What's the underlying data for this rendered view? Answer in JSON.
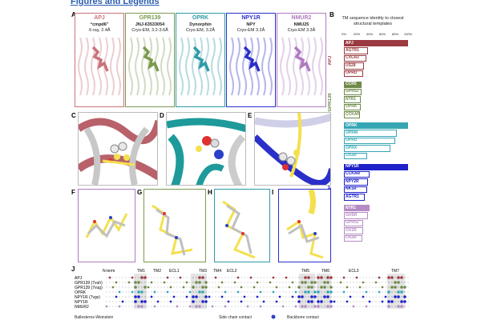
{
  "page_title": "Figures and Legends",
  "panel_labels": [
    "A",
    "B",
    "C",
    "D",
    "E",
    "F",
    "G",
    "H",
    "I",
    "J"
  ],
  "panelA": {
    "structures": [
      {
        "name": "APJ",
        "ligand": "“cmpd6”",
        "method": "X-ray, 2.4Å",
        "color": "#c9737a"
      },
      {
        "name": "GPR139",
        "ligand": "JNJ-63533054",
        "method": "Cryo-EM, 3.2-3.6Å",
        "color": "#7a9a4f"
      },
      {
        "name": "OPRK",
        "ligand": "Dynorphin",
        "method": "Cryo-EM, 3.2Å",
        "color": "#2e9aa8"
      },
      {
        "name": "NPY1R",
        "ligand": "NPY",
        "method": "Cryo-EM 3.2Å",
        "color": "#2a2fc9"
      },
      {
        "name": "NMUR2",
        "ligand": "NMU25",
        "method": "Cryo-EM 3.3Å",
        "color": "#b07ac0"
      }
    ]
  },
  "chart_data": {
    "type": "bar",
    "title": "TM sequence identity to closest structural templates",
    "x_ticks": [
      "0%",
      "20%",
      "40%",
      "60%",
      "80%",
      "100%"
    ],
    "xlim": [
      0,
      100
    ],
    "groups": [
      {
        "name": "APJ",
        "color": "#9b3a40",
        "bars": [
          {
            "label": "APJ",
            "value": 100,
            "filled": true
          },
          {
            "label": "AGTR1",
            "value": 38
          },
          {
            "label": "CXCR2",
            "value": 35
          },
          {
            "label": "US28",
            "value": 31
          },
          {
            "label": "OPRD",
            "value": 30
          }
        ]
      },
      {
        "name": "GPR139",
        "color": "#6f8a4a",
        "bars": [
          {
            "label": "CCR5",
            "value": 28,
            "filled": true
          },
          {
            "label": "GPR52",
            "value": 27
          },
          {
            "label": "NTR1",
            "value": 26
          },
          {
            "label": "OPRK",
            "value": 26
          },
          {
            "label": "CCKAR",
            "value": 25
          }
        ]
      },
      {
        "name": "OPRK",
        "color": "#36a6b5",
        "bars": [
          {
            "label": "OPRK",
            "value": 100,
            "filled": true
          },
          {
            "label": "OPRM",
            "value": 82
          },
          {
            "label": "OPRD",
            "value": 80
          },
          {
            "label": "OPRX",
            "value": 72
          },
          {
            "label": "OX2R",
            "value": 36
          }
        ]
      },
      {
        "name": "NPY1R",
        "color": "#1e22c8",
        "bars": [
          {
            "label": "NPY1R",
            "value": 100,
            "filled": true
          },
          {
            "label": "CCKAR",
            "value": 40
          },
          {
            "label": "NPY2R",
            "value": 38
          },
          {
            "label": "NK1R",
            "value": 36
          },
          {
            "label": "AGTR1",
            "value": 32
          }
        ]
      },
      {
        "name": "NMUR2",
        "color": "#b58cc4",
        "bars": [
          {
            "label": "NTR1",
            "value": 40,
            "filled": true
          },
          {
            "label": "GHSR",
            "value": 38
          },
          {
            "label": "GPR52",
            "value": 30
          },
          {
            "label": "OX1R",
            "value": 30
          },
          {
            "label": "OX2R",
            "value": 29
          }
        ]
      }
    ]
  },
  "panelJ": {
    "regions": [
      "N-term",
      "TM1",
      "TM2",
      "ECL1",
      "TM3",
      "TM4",
      "ECL2",
      "TM5",
      "TM6",
      "ECL3",
      "TM7"
    ],
    "rows": [
      "APJ",
      "GPR139 (7vuh)",
      "GPR139 (7vug)",
      "OPRK",
      "NPY1R (7vgx)",
      "NPY1R",
      "NMUR2"
    ],
    "row_colors": [
      "#9b3a40",
      "#6f8a4a",
      "#6f8a4a",
      "#36a6b5",
      "#1e22c8",
      "#1e22c8",
      "#b58cc4"
    ],
    "footer_left": "Ballesteros-Weinstein",
    "legend_side": "Side chain contact",
    "legend_back": "Backbone contact"
  }
}
